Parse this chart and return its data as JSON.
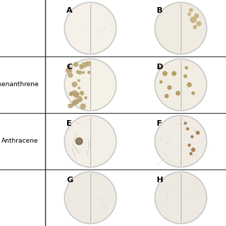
{
  "figure_bg": "#ffffff",
  "panel_bg": "#dce8f0",
  "dish_bg_colors": {
    "row0_left": "#f5f0e8",
    "row0_right": "#f0ebe0",
    "row1_left": "#f5f1e7",
    "row1_right": "#f2ede2",
    "row2_left": "#f3efe6",
    "row2_right": "#f0ece4",
    "row3_left": "#eeeae2",
    "row3_right": "#ede9e1"
  },
  "labels": {
    "row0": "",
    "row1": "Phenanthrene",
    "row2": "Anthracene",
    "row3": ""
  },
  "panel_labels": [
    "A",
    "B",
    "C",
    "D",
    "E",
    "F",
    "G",
    "H"
  ],
  "label_color": "#000000",
  "border_color": "#c8c8c8",
  "separator_color": "#888888",
  "grid_line_color": "#333333",
  "n_rows": 4,
  "n_cols": 2,
  "figsize": [
    3.2,
    3.2
  ],
  "dpi": 100
}
